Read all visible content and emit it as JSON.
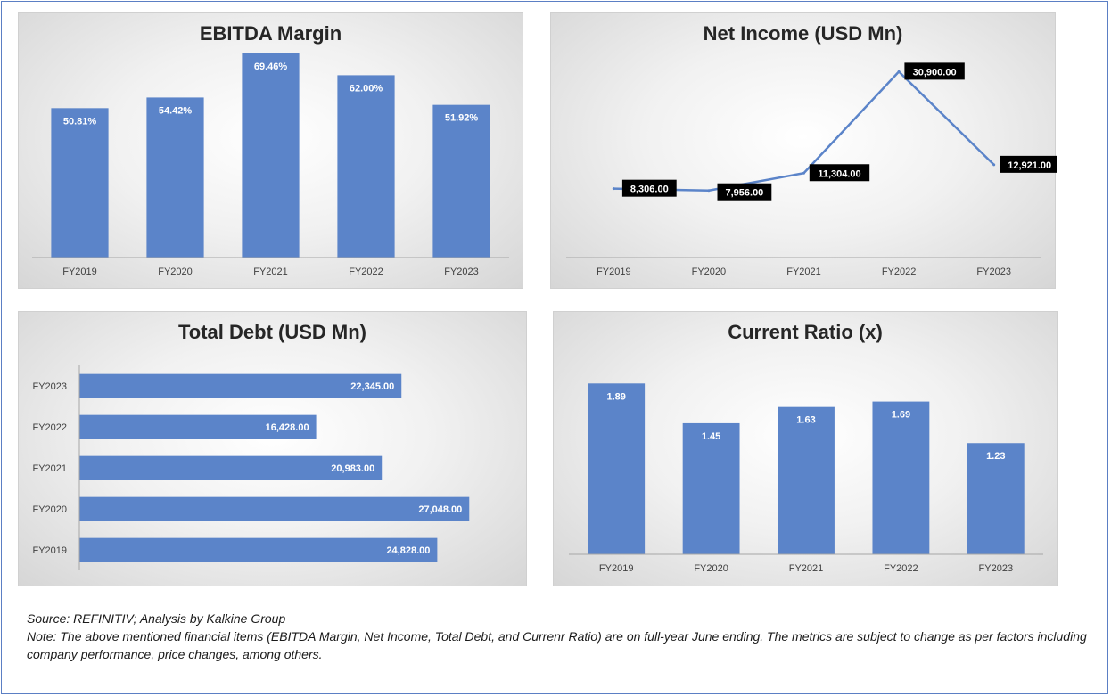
{
  "chart_data": [
    {
      "id": "ebitda",
      "type": "bar",
      "title": "EBITDA Margin",
      "categories": [
        "FY2019",
        "FY2020",
        "FY2021",
        "FY2022",
        "FY2023"
      ],
      "values": [
        50.81,
        54.42,
        69.46,
        62.0,
        51.92
      ],
      "labels": [
        "50.81%",
        "54.42%",
        "69.46%",
        "62.00%",
        "51.92%"
      ],
      "ylim": [
        0,
        80
      ],
      "grid": false,
      "bar_color": "#5b84c9"
    },
    {
      "id": "netincome",
      "type": "line",
      "title": "Net Income (USD Mn)",
      "categories": [
        "FY2019",
        "FY2020",
        "FY2021",
        "FY2022",
        "FY2023"
      ],
      "values": [
        8306.0,
        7956.0,
        11304.0,
        30900.0,
        12921.0
      ],
      "labels": [
        "8,306.00",
        "7,956.00",
        "11,304.00",
        "30,900.00",
        "12,921.00"
      ],
      "ylim": [
        -5000,
        32000
      ],
      "grid": false,
      "line_color": "#5b84c9"
    },
    {
      "id": "totaldebt",
      "type": "bar",
      "orientation": "horizontal",
      "title": "Total Debt (USD Mn)",
      "categories": [
        "FY2019",
        "FY2020",
        "FY2021",
        "FY2022",
        "FY2023"
      ],
      "values": [
        24828.0,
        27048.0,
        20983.0,
        16428.0,
        22345.0
      ],
      "labels": [
        "24,828.00",
        "27,048.00",
        "20,983.00",
        "16,428.00",
        "22,345.00"
      ],
      "xlim": [
        0,
        30000
      ],
      "grid": false,
      "bar_color": "#5b84c9"
    },
    {
      "id": "currentratio",
      "type": "bar",
      "title": "Current Ratio (x)",
      "categories": [
        "FY2019",
        "FY2020",
        "FY2021",
        "FY2022",
        "FY2023"
      ],
      "values": [
        1.89,
        1.45,
        1.63,
        1.69,
        1.23
      ],
      "labels": [
        "1.89",
        "1.45",
        "1.63",
        "1.69",
        "1.23"
      ],
      "ylim": [
        0,
        2.1
      ],
      "grid": false,
      "bar_color": "#5b84c9"
    }
  ],
  "notes": {
    "source": "Source: REFINITIV; Analysis by Kalkine Group",
    "note": "Note: The above mentioned financial items (EBITDA Margin, Net Income, Total Debt, and Currenr Ratio) are on full-year June ending. The metrics are subject to change as per factors including company performance, price changes, among others."
  }
}
